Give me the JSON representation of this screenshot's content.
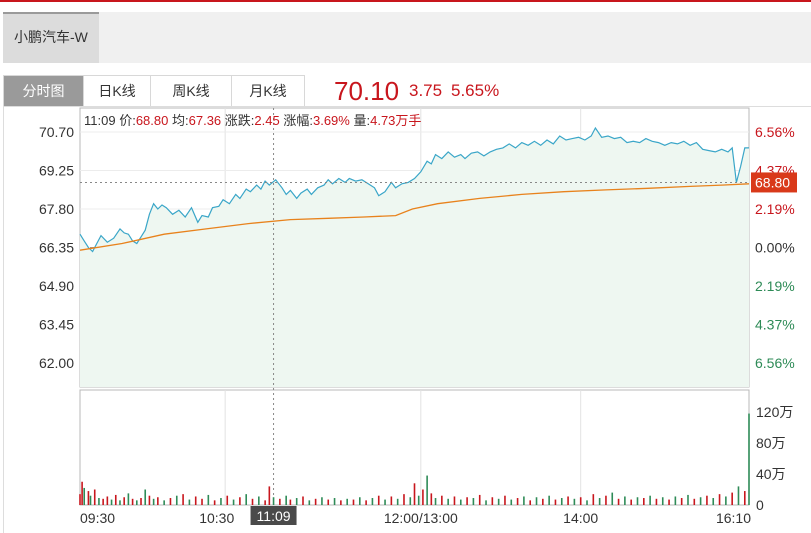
{
  "stock_tab": {
    "name": "小鹏汽车-W"
  },
  "period_tabs": [
    {
      "label": "分时图",
      "active": true
    },
    {
      "label": "日K线",
      "active": false
    },
    {
      "label": "周K线",
      "active": false
    },
    {
      "label": "月K线",
      "active": false
    }
  ],
  "quote": {
    "price": "70.10",
    "change": "3.75",
    "change_pct": "5.65%"
  },
  "info": {
    "time": "11:09",
    "price_label": "价:",
    "price": "68.80",
    "avg_label": "均:",
    "avg": "67.36",
    "change_label": "涨跌:",
    "change": "2.45",
    "pct_label": "涨幅:",
    "pct": "3.69%",
    "vol_label": "量:",
    "vol": "4.73万手"
  },
  "crosshair": {
    "time_label": "11:09",
    "price_label": "68.80"
  },
  "colors": {
    "up": "#c8161d",
    "down": "#2e8b57",
    "price_line": "#3aa6c8",
    "avg_line": "#e8821c",
    "fill": "#eef7f1"
  },
  "chart_data": {
    "type": "line",
    "prev_close": 66.35,
    "y_ticks_left": [
      "70.70",
      "69.25",
      "67.80",
      "66.35",
      "64.90",
      "63.45",
      "62.00"
    ],
    "y_ticks_right": [
      "6.56%",
      "4.37%",
      "2.19%",
      "0.00%",
      "2.19%",
      "4.37%",
      "6.56%"
    ],
    "ylim": [
      62.0,
      70.7
    ],
    "x_ticks": [
      "09:30",
      "10:30",
      "12:00/13:00",
      "14:00",
      "16:10"
    ],
    "vol_ticks": [
      "120万",
      "80万",
      "40万",
      "0"
    ],
    "vol_max": 120,
    "series": [
      {
        "values": [
          [
            0,
            66.85
          ],
          [
            2,
            66.6
          ],
          [
            4,
            66.35
          ],
          [
            6,
            66.2
          ],
          [
            8,
            66.5
          ],
          [
            10,
            66.8
          ],
          [
            13,
            66.55
          ],
          [
            16,
            66.7
          ],
          [
            19,
            67.05
          ],
          [
            21,
            66.9
          ],
          [
            23,
            66.85
          ],
          [
            25,
            66.6
          ],
          [
            27,
            66.5
          ],
          [
            29,
            66.75
          ],
          [
            31,
            67.0
          ],
          [
            33,
            67.6
          ],
          [
            35,
            68.0
          ],
          [
            37,
            67.8
          ],
          [
            39,
            67.95
          ],
          [
            41,
            67.85
          ],
          [
            44,
            67.6
          ],
          [
            47,
            67.75
          ],
          [
            50,
            67.5
          ],
          [
            53,
            67.85
          ],
          [
            56,
            67.3
          ],
          [
            58,
            67.55
          ],
          [
            61,
            67.5
          ],
          [
            63,
            67.85
          ],
          [
            66,
            67.9
          ],
          [
            68,
            68.15
          ],
          [
            71,
            68.0
          ],
          [
            74,
            68.35
          ],
          [
            76,
            68.2
          ],
          [
            79,
            68.55
          ],
          [
            81,
            68.45
          ],
          [
            84,
            68.7
          ],
          [
            86,
            68.55
          ],
          [
            88,
            68.85
          ],
          [
            90,
            68.7
          ],
          [
            93,
            68.9
          ],
          [
            96,
            68.6
          ],
          [
            98,
            68.35
          ],
          [
            100,
            68.5
          ],
          [
            103,
            68.2
          ],
          [
            105,
            68.4
          ],
          [
            108,
            68.55
          ],
          [
            110,
            68.35
          ],
          [
            113,
            68.6
          ],
          [
            116,
            68.7
          ],
          [
            118,
            68.9
          ],
          [
            120,
            68.75
          ],
          [
            123,
            68.95
          ],
          [
            126,
            68.8
          ],
          [
            128,
            68.95
          ],
          [
            131,
            68.85
          ],
          [
            134,
            68.9
          ],
          [
            137,
            68.75
          ],
          [
            140,
            68.6
          ],
          [
            142,
            68.3
          ],
          [
            145,
            68.45
          ],
          [
            148,
            68.8
          ],
          [
            150,
            68.6
          ],
          [
            153,
            68.75
          ],
          [
            156,
            68.8
          ],
          [
            159,
            68.95
          ],
          [
            162,
            69.2
          ],
          [
            165,
            69.6
          ],
          [
            167,
            69.5
          ],
          [
            169,
            69.85
          ],
          [
            172,
            69.7
          ],
          [
            175,
            69.95
          ],
          [
            178,
            69.75
          ],
          [
            181,
            69.85
          ],
          [
            183,
            69.7
          ],
          [
            186,
            69.9
          ],
          [
            189,
            69.95
          ],
          [
            192,
            69.8
          ],
          [
            195,
            69.95
          ],
          [
            198,
            70.05
          ],
          [
            201,
            70.1
          ],
          [
            204,
            70.25
          ],
          [
            207,
            70.1
          ],
          [
            210,
            70.3
          ],
          [
            213,
            70.2
          ],
          [
            216,
            70.35
          ],
          [
            219,
            70.2
          ],
          [
            222,
            70.4
          ],
          [
            225,
            70.25
          ],
          [
            228,
            70.55
          ],
          [
            231,
            70.4
          ],
          [
            234,
            70.45
          ],
          [
            237,
            70.5
          ],
          [
            240,
            70.4
          ],
          [
            243,
            70.55
          ],
          [
            245,
            70.85
          ],
          [
            248,
            70.5
          ],
          [
            251,
            70.55
          ],
          [
            254,
            70.45
          ],
          [
            257,
            70.5
          ],
          [
            260,
            70.3
          ],
          [
            263,
            70.35
          ],
          [
            266,
            70.3
          ],
          [
            269,
            70.45
          ],
          [
            272,
            70.35
          ],
          [
            275,
            70.3
          ],
          [
            278,
            70.2
          ],
          [
            281,
            70.3
          ],
          [
            284,
            70.25
          ],
          [
            287,
            70.35
          ],
          [
            290,
            70.2
          ],
          [
            293,
            70.3
          ],
          [
            296,
            70.05
          ],
          [
            299,
            70.0
          ],
          [
            302,
            69.95
          ],
          [
            305,
            70.05
          ],
          [
            308,
            69.95
          ],
          [
            310,
            70.1
          ],
          [
            312,
            68.8
          ],
          [
            314,
            69.4
          ],
          [
            316,
            70.1
          ],
          [
            318,
            70.1
          ]
        ]
      },
      {
        "values": [
          [
            0,
            66.25
          ],
          [
            20,
            66.5
          ],
          [
            40,
            66.85
          ],
          [
            60,
            67.05
          ],
          [
            80,
            67.25
          ],
          [
            100,
            67.4
          ],
          [
            118,
            67.45
          ],
          [
            135,
            67.5
          ],
          [
            150,
            67.55
          ],
          [
            158,
            67.8
          ],
          [
            170,
            68.0
          ],
          [
            190,
            68.2
          ],
          [
            210,
            68.35
          ],
          [
            230,
            68.45
          ],
          [
            250,
            68.52
          ],
          [
            270,
            68.58
          ],
          [
            290,
            68.65
          ],
          [
            305,
            68.7
          ],
          [
            318,
            68.75
          ]
        ]
      }
    ],
    "volume": [
      {
        "t": 0,
        "v": 14,
        "up": true
      },
      {
        "t": 1,
        "v": 30,
        "up": true
      },
      {
        "t": 2,
        "v": 22,
        "up": false
      },
      {
        "t": 4,
        "v": 18,
        "up": true
      },
      {
        "t": 5,
        "v": 12,
        "up": false
      },
      {
        "t": 7,
        "v": 20,
        "up": true
      },
      {
        "t": 9,
        "v": 9,
        "up": false
      },
      {
        "t": 11,
        "v": 8,
        "up": true
      },
      {
        "t": 13,
        "v": 11,
        "up": true
      },
      {
        "t": 15,
        "v": 7,
        "up": false
      },
      {
        "t": 17,
        "v": 13,
        "up": true
      },
      {
        "t": 19,
        "v": 6,
        "up": false
      },
      {
        "t": 21,
        "v": 10,
        "up": true
      },
      {
        "t": 23,
        "v": 15,
        "up": false
      },
      {
        "t": 25,
        "v": 8,
        "up": true
      },
      {
        "t": 27,
        "v": 6,
        "up": false
      },
      {
        "t": 29,
        "v": 9,
        "up": true
      },
      {
        "t": 31,
        "v": 20,
        "up": false
      },
      {
        "t": 33,
        "v": 12,
        "up": true
      },
      {
        "t": 35,
        "v": 8,
        "up": false
      },
      {
        "t": 37,
        "v": 10,
        "up": true
      },
      {
        "t": 40,
        "v": 6,
        "up": false
      },
      {
        "t": 43,
        "v": 9,
        "up": true
      },
      {
        "t": 46,
        "v": 12,
        "up": false
      },
      {
        "t": 49,
        "v": 14,
        "up": true
      },
      {
        "t": 52,
        "v": 7,
        "up": false
      },
      {
        "t": 55,
        "v": 11,
        "up": true
      },
      {
        "t": 58,
        "v": 8,
        "up": true
      },
      {
        "t": 61,
        "v": 13,
        "up": false
      },
      {
        "t": 64,
        "v": 6,
        "up": true
      },
      {
        "t": 67,
        "v": 9,
        "up": false
      },
      {
        "t": 70,
        "v": 12,
        "up": true
      },
      {
        "t": 73,
        "v": 7,
        "up": false
      },
      {
        "t": 76,
        "v": 10,
        "up": true
      },
      {
        "t": 79,
        "v": 14,
        "up": false
      },
      {
        "t": 82,
        "v": 8,
        "up": true
      },
      {
        "t": 85,
        "v": 11,
        "up": false
      },
      {
        "t": 88,
        "v": 6,
        "up": true
      },
      {
        "t": 90,
        "v": 24,
        "up": true
      },
      {
        "t": 92,
        "v": 10,
        "up": false
      },
      {
        "t": 95,
        "v": 8,
        "up": true
      },
      {
        "t": 98,
        "v": 12,
        "up": false
      },
      {
        "t": 100,
        "v": 7,
        "up": true
      },
      {
        "t": 103,
        "v": 9,
        "up": false
      },
      {
        "t": 106,
        "v": 11,
        "up": true
      },
      {
        "t": 109,
        "v": 6,
        "up": false
      },
      {
        "t": 112,
        "v": 8,
        "up": true
      },
      {
        "t": 115,
        "v": 10,
        "up": false
      },
      {
        "t": 118,
        "v": 7,
        "up": true
      },
      {
        "t": 121,
        "v": 9,
        "up": false
      },
      {
        "t": 124,
        "v": 6,
        "up": true
      },
      {
        "t": 127,
        "v": 8,
        "up": false
      },
      {
        "t": 130,
        "v": 7,
        "up": true
      },
      {
        "t": 133,
        "v": 10,
        "up": false
      },
      {
        "t": 136,
        "v": 6,
        "up": true
      },
      {
        "t": 139,
        "v": 9,
        "up": false
      },
      {
        "t": 142,
        "v": 12,
        "up": true
      },
      {
        "t": 145,
        "v": 7,
        "up": false
      },
      {
        "t": 148,
        "v": 11,
        "up": true
      },
      {
        "t": 151,
        "v": 8,
        "up": false
      },
      {
        "t": 154,
        "v": 14,
        "up": true
      },
      {
        "t": 157,
        "v": 10,
        "up": false
      },
      {
        "t": 159,
        "v": 28,
        "up": true
      },
      {
        "t": 161,
        "v": 12,
        "up": false
      },
      {
        "t": 163,
        "v": 20,
        "up": true
      },
      {
        "t": 165,
        "v": 38,
        "up": false
      },
      {
        "t": 167,
        "v": 15,
        "up": true
      },
      {
        "t": 169,
        "v": 9,
        "up": false
      },
      {
        "t": 172,
        "v": 12,
        "up": true
      },
      {
        "t": 175,
        "v": 8,
        "up": false
      },
      {
        "t": 178,
        "v": 11,
        "up": true
      },
      {
        "t": 181,
        "v": 7,
        "up": false
      },
      {
        "t": 184,
        "v": 10,
        "up": true
      },
      {
        "t": 187,
        "v": 9,
        "up": false
      },
      {
        "t": 190,
        "v": 13,
        "up": true
      },
      {
        "t": 193,
        "v": 6,
        "up": false
      },
      {
        "t": 196,
        "v": 10,
        "up": true
      },
      {
        "t": 199,
        "v": 8,
        "up": false
      },
      {
        "t": 202,
        "v": 12,
        "up": true
      },
      {
        "t": 205,
        "v": 7,
        "up": false
      },
      {
        "t": 208,
        "v": 9,
        "up": true
      },
      {
        "t": 211,
        "v": 11,
        "up": false
      },
      {
        "t": 214,
        "v": 6,
        "up": true
      },
      {
        "t": 217,
        "v": 10,
        "up": false
      },
      {
        "t": 220,
        "v": 8,
        "up": true
      },
      {
        "t": 223,
        "v": 12,
        "up": false
      },
      {
        "t": 226,
        "v": 7,
        "up": true
      },
      {
        "t": 229,
        "v": 9,
        "up": false
      },
      {
        "t": 232,
        "v": 11,
        "up": true
      },
      {
        "t": 235,
        "v": 8,
        "up": false
      },
      {
        "t": 238,
        "v": 10,
        "up": true
      },
      {
        "t": 241,
        "v": 6,
        "up": false
      },
      {
        "t": 244,
        "v": 14,
        "up": true
      },
      {
        "t": 247,
        "v": 9,
        "up": false
      },
      {
        "t": 250,
        "v": 12,
        "up": true
      },
      {
        "t": 253,
        "v": 16,
        "up": false
      },
      {
        "t": 256,
        "v": 8,
        "up": true
      },
      {
        "t": 259,
        "v": 11,
        "up": false
      },
      {
        "t": 262,
        "v": 7,
        "up": true
      },
      {
        "t": 265,
        "v": 10,
        "up": false
      },
      {
        "t": 268,
        "v": 9,
        "up": true
      },
      {
        "t": 271,
        "v": 12,
        "up": false
      },
      {
        "t": 274,
        "v": 8,
        "up": true
      },
      {
        "t": 277,
        "v": 10,
        "up": false
      },
      {
        "t": 280,
        "v": 7,
        "up": true
      },
      {
        "t": 283,
        "v": 11,
        "up": false
      },
      {
        "t": 286,
        "v": 9,
        "up": true
      },
      {
        "t": 289,
        "v": 13,
        "up": false
      },
      {
        "t": 292,
        "v": 8,
        "up": true
      },
      {
        "t": 295,
        "v": 10,
        "up": false
      },
      {
        "t": 298,
        "v": 12,
        "up": true
      },
      {
        "t": 301,
        "v": 9,
        "up": false
      },
      {
        "t": 304,
        "v": 14,
        "up": true
      },
      {
        "t": 307,
        "v": 11,
        "up": false
      },
      {
        "t": 310,
        "v": 16,
        "up": true
      },
      {
        "t": 313,
        "v": 24,
        "up": false
      },
      {
        "t": 316,
        "v": 18,
        "up": true
      },
      {
        "t": 318,
        "v": 118,
        "up": false
      }
    ]
  }
}
